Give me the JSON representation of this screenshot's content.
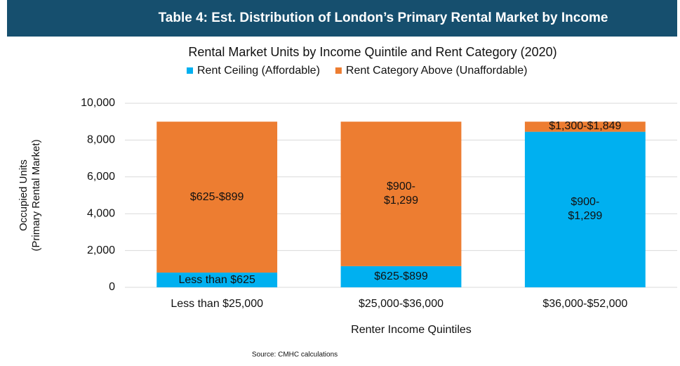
{
  "header": {
    "title": "Table 4:  Est. Distribution of London’s Primary Rental Market by Income"
  },
  "source": "Source: CMHC calculations",
  "chart_data": {
    "type": "stacked_bar",
    "title": "Rental Market Units by Income Quintile and Rent Category (2020)",
    "xlabel": "Renter Income Quintiles",
    "ylabel": [
      "Occupied Units",
      "(Primary Rental Market)"
    ],
    "categories": [
      "Less than $25,000",
      "$25,000-$36,000",
      "$36,000-$52,000"
    ],
    "series": [
      {
        "name": "Rent Ceiling (Affordable)",
        "color": "#00b0f0",
        "values": [
          800,
          1150,
          8450
        ],
        "labels": [
          "Less than $625",
          "$625-$899",
          "$900-\n$1,299"
        ]
      },
      {
        "name": "Rent Category Above (Unaffordable)",
        "color": "#ed7d31",
        "values": [
          8200,
          7850,
          550
        ],
        "labels": [
          "$625-$899",
          "$900-\n$1,299",
          "$1,300-$1,849"
        ]
      }
    ],
    "ylim": [
      0,
      10000
    ],
    "yticks": [
      {
        "value": 0,
        "label": "0"
      },
      {
        "value": 2000,
        "label": "2,000"
      },
      {
        "value": 4000,
        "label": "4,000"
      },
      {
        "value": 6000,
        "label": "6,000"
      },
      {
        "value": 8000,
        "label": "8,000"
      },
      {
        "value": 10000,
        "label": "10,000"
      }
    ],
    "grid": true,
    "legend": "top"
  }
}
